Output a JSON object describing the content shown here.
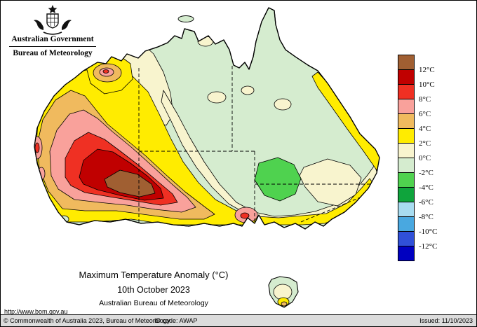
{
  "header": {
    "government": "Australian Government",
    "bureau": "Bureau of Meteorology"
  },
  "titles": {
    "main": "Maximum Temperature Anomaly (°C)",
    "date": "10th October 2023",
    "source": "Australian Bureau of Meteorology",
    "url": "http://www.bom.gov.au"
  },
  "legend": {
    "unit": "°C",
    "colors": [
      "#A05F32",
      "#C00000",
      "#EF3023",
      "#F9A19B",
      "#F0BA5E",
      "#FFEC00",
      "#F8F4CE",
      "#D5ECCF",
      "#4FD24F",
      "#0FA43C",
      "#A8DCF0",
      "#49A8E0",
      "#3050D8",
      "#0000C0"
    ],
    "labels": [
      "12°C",
      "10°C",
      "8°C",
      "6°C",
      "4°C",
      "2°C",
      "0°C",
      "-2°C",
      "-4°C",
      "-6°C",
      "-8°C",
      "-10°C",
      "-12°C"
    ]
  },
  "footer": {
    "copyright": "© Commonwealth of Australia 2023, Bureau of Meteorology",
    "id_code": "ID code: AWAP",
    "issued": "Issued: 11/10/2023"
  }
}
